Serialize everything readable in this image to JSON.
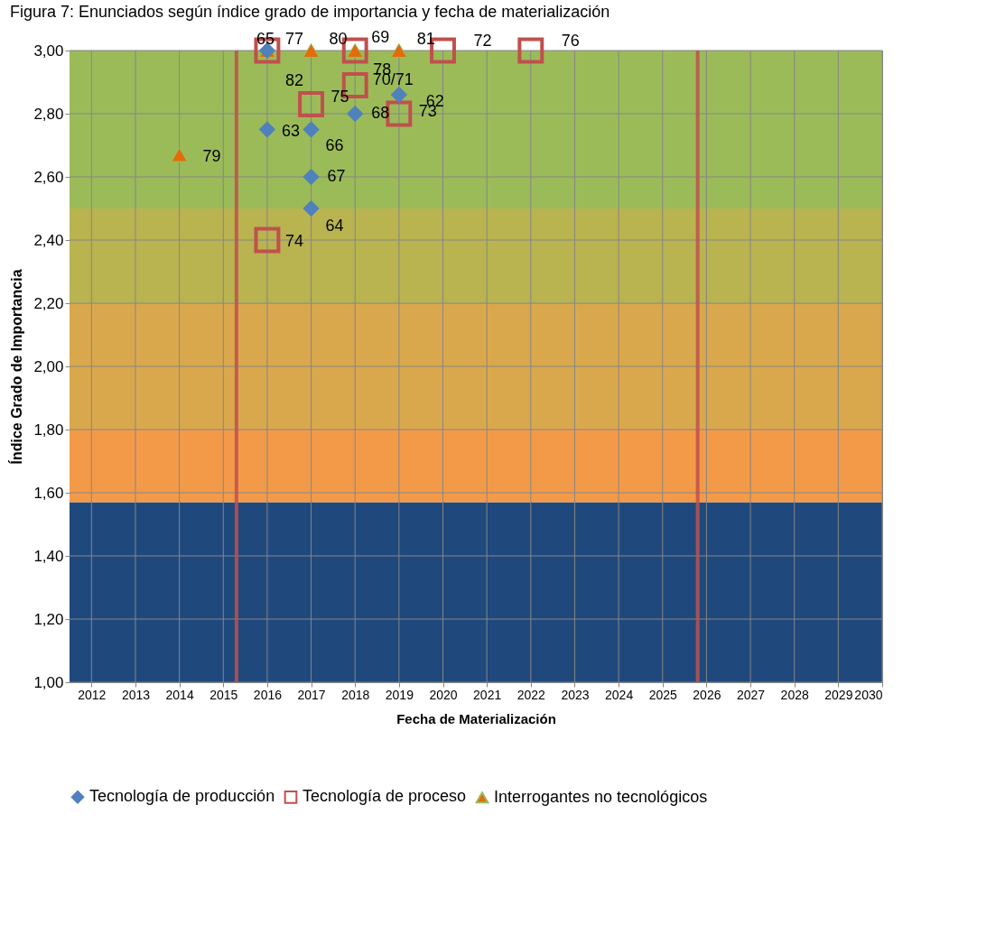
{
  "chart_data": {
    "type": "scatter",
    "title": "Figura 7: Enunciados según índice grado de importancia y fecha de materialización",
    "xlabel": "Fecha de Materialización",
    "ylabel": "Índice Grado de Importancia",
    "series": [
      {
        "name": "Tecnología de producción",
        "color": "#4f81bd",
        "marker": "diamond",
        "x": [
          2016,
          2019,
          2016,
          2017,
          2018,
          2017,
          2017
        ],
        "values": [
          3.0,
          2.86,
          2.75,
          2.75,
          2.8,
          2.6,
          2.5
        ]
      },
      {
        "name": "Tecnología de proceso",
        "color": "#c0504d",
        "marker": "square",
        "x": [
          2016,
          2018,
          2020,
          2022,
          2018,
          2017,
          2019,
          2016
        ],
        "values": [
          3.0,
          3.0,
          3.0,
          3.0,
          2.89,
          2.83,
          2.8,
          2.4
        ]
      },
      {
        "name": "Interrogantes no tecnológicos",
        "color": "#e36c09",
        "marker": "triangle",
        "x": [
          2016,
          2017,
          2018,
          2019,
          2014
        ],
        "values": [
          3.0,
          3.0,
          3.0,
          3.0,
          2.67
        ]
      }
    ],
    "annotations": [
      {
        "text": "65",
        "x": 2016,
        "y": 3.0
      },
      {
        "text": "77",
        "x": 2016,
        "y": 3.0
      },
      {
        "text": "82",
        "x": 2016,
        "y": 3.0
      },
      {
        "text": "80",
        "x": 2017,
        "y": 3.0
      },
      {
        "text": "69",
        "x": 2018,
        "y": 3.0
      },
      {
        "text": "78",
        "x": 2018,
        "y": 3.0
      },
      {
        "text": "81",
        "x": 2019,
        "y": 3.0
      },
      {
        "text": "72",
        "x": 2020,
        "y": 3.0
      },
      {
        "text": "76",
        "x": 2022,
        "y": 3.0
      },
      {
        "text": "70/71",
        "x": 2018,
        "y": 2.89
      },
      {
        "text": "62",
        "x": 2019,
        "y": 2.86
      },
      {
        "text": "75",
        "x": 2017,
        "y": 2.83
      },
      {
        "text": "68",
        "x": 2018,
        "y": 2.8
      },
      {
        "text": "73",
        "x": 2019,
        "y": 2.8
      },
      {
        "text": "63",
        "x": 2016,
        "y": 2.75
      },
      {
        "text": "66",
        "x": 2017,
        "y": 2.75
      },
      {
        "text": "79",
        "x": 2014,
        "y": 2.67
      },
      {
        "text": "67",
        "x": 2017,
        "y": 2.6
      },
      {
        "text": "64",
        "x": 2017,
        "y": 2.5
      },
      {
        "text": "74",
        "x": 2016,
        "y": 2.4
      }
    ],
    "ref_lines": [
      {
        "axis": "x",
        "value": 2015.3,
        "color": "#c0504d"
      },
      {
        "axis": "x",
        "value": 2025.8,
        "color": "#c0504d"
      }
    ],
    "bands": [
      {
        "axis": "y",
        "from": 1.0,
        "to": 1.57,
        "color": "#1f497d"
      },
      {
        "axis": "y",
        "from": 1.57,
        "to": 1.8,
        "color": "#f39a48"
      },
      {
        "axis": "y",
        "from": 1.8,
        "to": 2.2,
        "color": "#daa84c"
      },
      {
        "axis": "y",
        "from": 2.2,
        "to": 2.5,
        "color": "#b9b350"
      },
      {
        "axis": "y",
        "from": 2.5,
        "to": 3.0,
        "color": "#9bbb59"
      }
    ],
    "xlim": [
      2011.5,
      2030
    ],
    "xticks": [
      2012,
      2013,
      2014,
      2015,
      2016,
      2017,
      2018,
      2019,
      2020,
      2021,
      2022,
      2023,
      2024,
      2025,
      2026,
      2027,
      2028,
      2029,
      2030
    ],
    "ylim": [
      1.0,
      3.0
    ],
    "yticks": [
      {
        "value": 1.0,
        "label": "1,00"
      },
      {
        "value": 1.2,
        "label": "1,20"
      },
      {
        "value": 1.4,
        "label": "1,40"
      },
      {
        "value": 1.6,
        "label": "1,60"
      },
      {
        "value": 1.8,
        "label": "1,80"
      },
      {
        "value": 2.0,
        "label": "2,00"
      },
      {
        "value": 2.2,
        "label": "2,20"
      },
      {
        "value": 2.4,
        "label": "2,40"
      },
      {
        "value": 2.6,
        "label": "2,60"
      },
      {
        "value": 2.8,
        "label": "2,80"
      },
      {
        "value": 3.0,
        "label": "3,00"
      }
    ],
    "grid": true,
    "legend": "bottom"
  }
}
